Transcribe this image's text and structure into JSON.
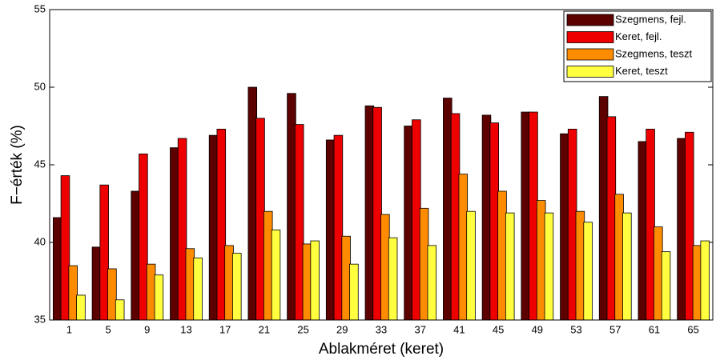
{
  "chart_data": {
    "type": "bar",
    "xlabel": "Ablakméret (keret)",
    "ylabel": "F−érték (%)",
    "categories": [
      "1",
      "5",
      "9",
      "13",
      "17",
      "21",
      "25",
      "29",
      "33",
      "37",
      "41",
      "45",
      "49",
      "53",
      "57",
      "61",
      "65"
    ],
    "series": [
      {
        "name": "Szegmens, fejl.",
        "color": "#5c0000",
        "values": [
          41.6,
          39.7,
          43.3,
          46.1,
          46.9,
          50.0,
          49.6,
          46.6,
          48.8,
          47.5,
          49.3,
          48.2,
          48.4,
          47.0,
          49.4,
          46.5,
          46.7
        ]
      },
      {
        "name": "Keret, fejl.",
        "color": "#ee0000",
        "values": [
          44.3,
          43.7,
          45.7,
          46.7,
          47.3,
          48.0,
          47.6,
          46.9,
          48.7,
          47.9,
          48.3,
          47.7,
          48.4,
          47.3,
          48.1,
          47.3,
          47.1
        ]
      },
      {
        "name": "Szegmens, teszt",
        "color": "#ff8c00",
        "values": [
          38.5,
          38.3,
          38.6,
          39.6,
          39.8,
          42.0,
          39.9,
          40.4,
          41.8,
          42.2,
          44.4,
          43.3,
          42.7,
          42.0,
          43.1,
          41.0,
          39.8
        ]
      },
      {
        "name": "Keret, teszt",
        "color": "#ffff40",
        "values": [
          36.6,
          36.3,
          37.9,
          39.0,
          39.3,
          40.8,
          40.1,
          38.6,
          40.3,
          39.8,
          42.0,
          41.9,
          41.9,
          41.3,
          41.9,
          39.4,
          40.1
        ]
      }
    ],
    "ylim": [
      35,
      55
    ],
    "yticks": [
      35,
      40,
      45,
      50,
      55
    ],
    "legend": "upper right"
  }
}
